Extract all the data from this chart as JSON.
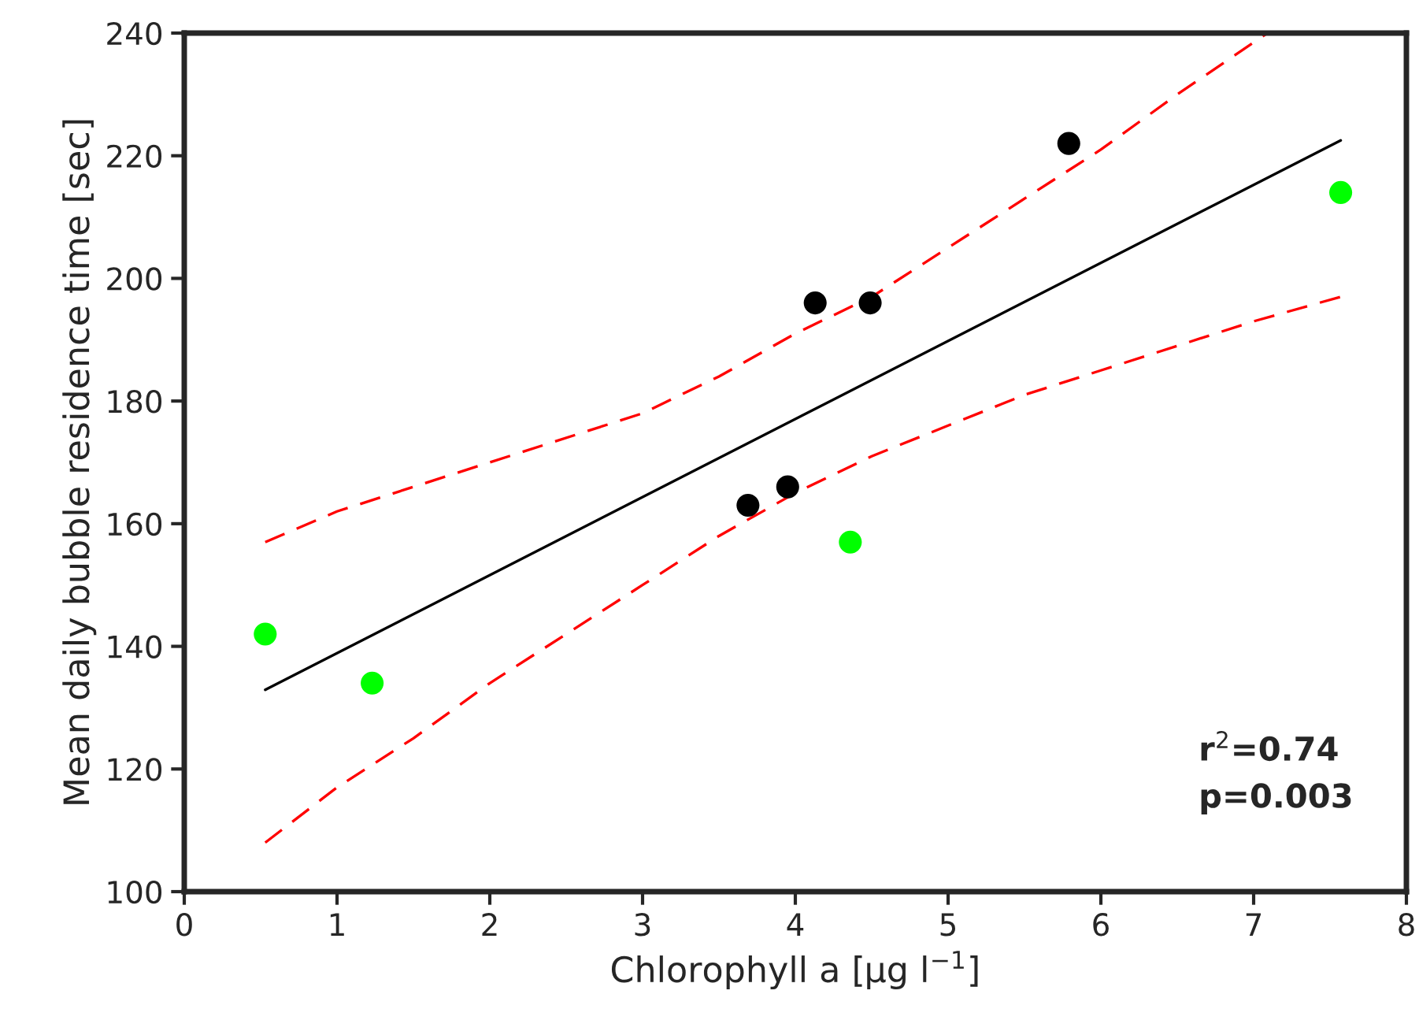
{
  "chart_data": {
    "type": "scatter",
    "xlabel": "Chlorophyll a [µg l$^{−1}$]",
    "ylabel": "Mean daily bubble residence time [sec]",
    "annotations": [
      "r$^{2}$=0.74\np=0.003"
    ],
    "series": [
      {
        "color": "#00ff00",
        "marker": "circle",
        "x": [
          0.53,
          1.23,
          4.36,
          7.57
        ],
        "values": [
          142,
          134,
          157,
          214
        ]
      },
      {
        "color": "#000000",
        "marker": "circle",
        "x": [
          3.69,
          3.95,
          4.13,
          4.49,
          5.79
        ],
        "values": [
          163,
          166,
          196,
          196,
          222
        ]
      },
      {
        "type": "line",
        "color": "#000000",
        "line_style": "solid",
        "marker": "none",
        "x": [
          0.53,
          7.57
        ],
        "values": [
          132.9,
          222.5
        ]
      },
      {
        "type": "line",
        "color": "#ff0000",
        "line_style": "dashed",
        "marker": "none",
        "x": [
          0.53,
          1,
          2,
          3,
          3.5,
          4,
          4.5,
          5,
          5.5,
          6,
          6.5,
          7.09
        ],
        "values": [
          157,
          162,
          170,
          178,
          184,
          191,
          197,
          205,
          213,
          221,
          230,
          240
        ]
      },
      {
        "type": "line",
        "color": "#ff0000",
        "line_style": "dashed",
        "marker": "none",
        "x": [
          0.53,
          1,
          1.5,
          2,
          2.5,
          3,
          3.5,
          4,
          4.5,
          5,
          5.5,
          6,
          6.5,
          7,
          7.57
        ],
        "values": [
          108,
          117,
          125,
          134,
          142,
          150,
          158,
          165,
          171,
          176,
          181,
          185,
          189,
          193,
          197
        ]
      }
    ],
    "xlim": [
      0,
      8
    ],
    "xticks": [
      0,
      1,
      2,
      3,
      4,
      5,
      6,
      7,
      8
    ],
    "ylim": [
      100,
      240
    ],
    "yticks": [
      100,
      120,
      140,
      160,
      180,
      200,
      220,
      240
    ],
    "grid": false,
    "legend": false
  }
}
